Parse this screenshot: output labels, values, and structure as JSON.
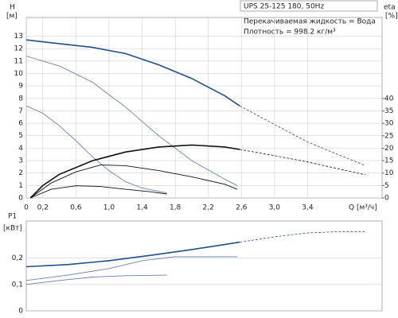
{
  "chart_data": [
    {
      "type": "line",
      "title": "UPS 25-125 180, 50Hz",
      "annotations": [
        "Перекачиваемая жидкость = Вода",
        "Плотность = 998.2 кг/м³"
      ],
      "ylabel": "H",
      "yunit": "[м]",
      "y2label": "eta",
      "y2unit": "[%]",
      "xlabel": "Q [м³/ч]",
      "xlim": [
        0,
        4.3
      ],
      "ylim": [
        0,
        14.5
      ],
      "y2lim": [
        0,
        72.6
      ],
      "xticks": [
        0,
        {
          "value": 0.2,
          "label": "0,2"
        },
        {
          "value": 0.6,
          "label": "0,6"
        },
        {
          "value": 1.0,
          "label": "1,0"
        },
        {
          "value": 1.4,
          "label": "1,4"
        },
        {
          "value": 1.8,
          "label": "1,8"
        },
        {
          "value": 2.2,
          "label": "2,2"
        },
        {
          "value": 2.6,
          "label": "2,6"
        },
        {
          "value": 3.0,
          "label": "3,0"
        },
        {
          "value": 3.4,
          "label": "3,4"
        }
      ],
      "yticks": [
        0,
        1,
        2,
        3,
        4,
        5,
        6,
        7,
        8,
        9,
        10,
        11,
        12,
        13
      ],
      "y2ticks": [
        0,
        5,
        10,
        15,
        20,
        25,
        30,
        35,
        40
      ],
      "grid": true,
      "series": [
        {
          "color": "#1f4e8c",
          "width": 1.6,
          "x": [
            0,
            0.4,
            0.8,
            1.2,
            1.6,
            2.0,
            2.4,
            2.58
          ],
          "values": [
            12.7,
            12.4,
            12.1,
            11.6,
            10.7,
            9.6,
            8.2,
            7.4
          ]
        },
        {
          "color": "#1f4e8c",
          "width": 0.8,
          "dashed": true,
          "x": [
            2.58,
            3.0,
            3.4,
            3.8,
            4.1
          ],
          "values": [
            7.4,
            5.9,
            4.5,
            3.4,
            2.6
          ]
        },
        {
          "color": "#6a7fb5",
          "width": 0.9,
          "x": [
            0,
            0.4,
            0.8,
            1.2,
            1.6,
            2.0,
            2.4,
            2.55
          ],
          "values": [
            11.4,
            10.6,
            9.3,
            7.3,
            5.0,
            3.0,
            1.5,
            1.0
          ]
        },
        {
          "color": "#6a7fb5",
          "width": 0.9,
          "x": [
            0,
            0.2,
            0.4,
            0.6,
            0.8,
            1.0,
            1.2,
            1.4,
            1.7
          ],
          "values": [
            7.4,
            6.8,
            5.8,
            4.6,
            3.3,
            2.2,
            1.3,
            0.8,
            0.4
          ]
        },
        {
          "color": "#111111",
          "width": 1.6,
          "axis": "y2",
          "x": [
            0.05,
            0.2,
            0.4,
            0.8,
            1.2,
            1.6,
            2.0,
            2.4,
            2.58
          ],
          "values": [
            0,
            5,
            9.5,
            15,
            18.5,
            20.5,
            21.3,
            20.5,
            19.5
          ]
        },
        {
          "color": "#111111",
          "width": 0.8,
          "axis": "y2",
          "dashed": true,
          "x": [
            2.58,
            3.0,
            3.4,
            3.8,
            4.1
          ],
          "values": [
            19.5,
            17,
            14.5,
            11.5,
            9.3
          ]
        },
        {
          "color": "#111111",
          "width": 0.9,
          "axis": "y2",
          "x": [
            0.05,
            0.3,
            0.6,
            0.9,
            1.2,
            1.6,
            2.0,
            2.4,
            2.55
          ],
          "values": [
            0,
            6,
            10.5,
            13.3,
            13,
            11,
            8.5,
            5.5,
            3.5
          ]
        },
        {
          "color": "#111111",
          "width": 0.9,
          "axis": "y2",
          "x": [
            0.05,
            0.3,
            0.6,
            0.9,
            1.2,
            1.5,
            1.7
          ],
          "values": [
            0,
            3.5,
            4.9,
            4.6,
            3.5,
            2.5,
            1.6
          ]
        }
      ]
    },
    {
      "type": "line",
      "ylabel": "P1",
      "yunit": "[кВт]",
      "xlim": [
        0,
        4.3
      ],
      "ylim": [
        0,
        0.34
      ],
      "yticks": [
        0,
        {
          "value": 0.1,
          "label": "0,1"
        },
        {
          "value": 0.2,
          "label": "0,2"
        }
      ],
      "grid": true,
      "series": [
        {
          "color": "#1f4e8c",
          "width": 1.6,
          "x": [
            0,
            0.5,
            1.0,
            1.5,
            2.0,
            2.58
          ],
          "values": [
            0.167,
            0.175,
            0.19,
            0.21,
            0.232,
            0.26
          ]
        },
        {
          "color": "#1f4e8c",
          "width": 0.8,
          "dashed": true,
          "x": [
            2.58,
            3.0,
            3.4,
            3.8,
            4.1
          ],
          "values": [
            0.26,
            0.28,
            0.295,
            0.3,
            0.3
          ]
        },
        {
          "color": "#6a7fb5",
          "width": 0.9,
          "x": [
            0,
            0.5,
            1.0,
            1.4,
            1.8,
            2.2,
            2.55
          ],
          "values": [
            0.115,
            0.135,
            0.16,
            0.19,
            0.205,
            0.205,
            0.205
          ]
        },
        {
          "color": "#6a7fb5",
          "width": 0.9,
          "x": [
            0,
            0.4,
            0.8,
            1.2,
            1.7
          ],
          "values": [
            0.1,
            0.115,
            0.128,
            0.133,
            0.135
          ]
        }
      ]
    }
  ]
}
